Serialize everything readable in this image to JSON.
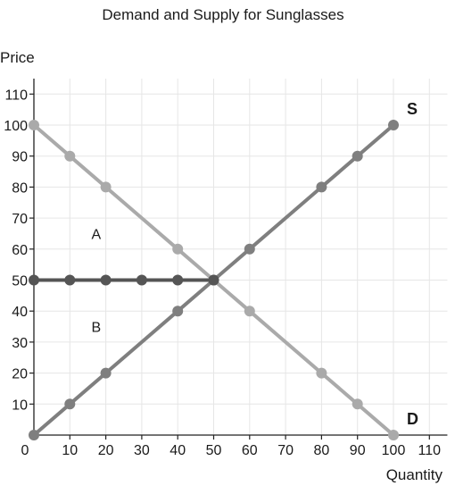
{
  "chart_data": {
    "type": "line",
    "title": "Demand and Supply for Sunglasses",
    "xlabel": "Quantity",
    "ylabel": "Price",
    "xlim": [
      0,
      115
    ],
    "ylim": [
      0,
      115
    ],
    "x_ticks": [
      0,
      10,
      20,
      30,
      40,
      50,
      60,
      70,
      80,
      90,
      100,
      110
    ],
    "y_ticks": [
      10,
      20,
      30,
      40,
      50,
      60,
      70,
      80,
      90,
      100,
      110
    ],
    "grid": true,
    "series": [
      {
        "name": "D",
        "color": "#aaaaaa",
        "points": [
          [
            0,
            100
          ],
          [
            10,
            90
          ],
          [
            20,
            80
          ],
          [
            40,
            60
          ],
          [
            50,
            50
          ],
          [
            60,
            40
          ],
          [
            80,
            20
          ],
          [
            90,
            10
          ],
          [
            100,
            0
          ]
        ]
      },
      {
        "name": "S",
        "color": "#7f7f7f",
        "points": [
          [
            0,
            0
          ],
          [
            10,
            10
          ],
          [
            20,
            20
          ],
          [
            40,
            40
          ],
          [
            50,
            50
          ],
          [
            60,
            60
          ],
          [
            80,
            80
          ],
          [
            90,
            90
          ],
          [
            100,
            100
          ]
        ]
      },
      {
        "color": "#555555",
        "points": [
          [
            0,
            50
          ],
          [
            10,
            50
          ],
          [
            20,
            50
          ],
          [
            30,
            50
          ],
          [
            40,
            50
          ],
          [
            50,
            50
          ]
        ]
      }
    ],
    "annotations": [
      {
        "text": "A",
        "x": 16,
        "y": 65
      },
      {
        "text": "B",
        "x": 16,
        "y": 35
      }
    ]
  }
}
